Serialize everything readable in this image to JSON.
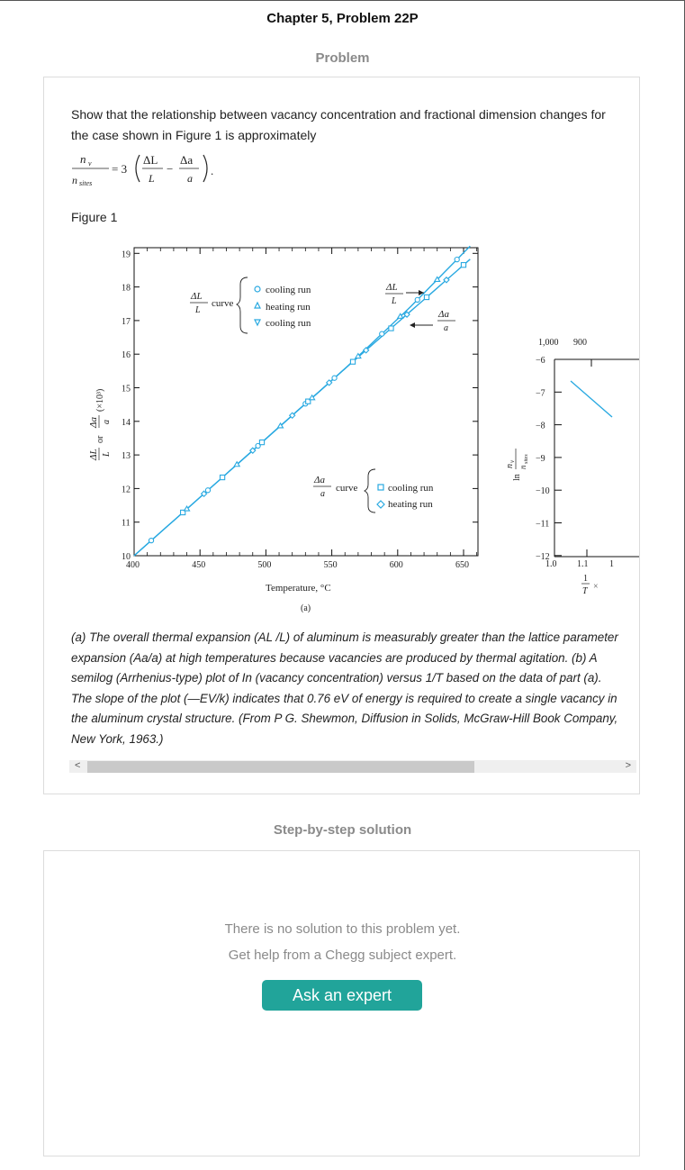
{
  "header": {
    "chapter_title": "Chapter 5, Problem 22P"
  },
  "problem": {
    "section_title": "Problem",
    "statement": "Show that the relationship between vacancy concentration and fractional dimension changes for the case shown in Figure 1 is approximately",
    "equation": {
      "lhs_num": "n",
      "lhs_num_sub": "v",
      "lhs_den": "n",
      "lhs_den_sub": "sites",
      "coef": "= 3",
      "t1_num": "ΔL",
      "t1_den": "L",
      "minus": "−",
      "t2_num": "Δa",
      "t2_den": "a",
      "end": "."
    },
    "figure_label": "Figure 1",
    "caption": "(a) The overall thermal expansion (AL /L) of aluminum is measurably greater than the lattice parameter expansion (Aa/a) at high temperatures because vacancies are produced by thermal agitation. (b) A semilog (Arrhenius-type) plot of In (vacancy concentration) versus 1/T based on the data of part (a). The slope of the plot (—EV/k) indicates that 0.76 eV of energy is required to create a single vacancy in the aluminum crystal structure. (From P G. Shewmon, Diffusion in Solids, McGraw-Hill Book Company, New York, 1963.)"
  },
  "figure": {
    "panel_a": {
      "y_ticks": [
        "19",
        "18",
        "17",
        "16",
        "15",
        "14",
        "13",
        "12",
        "11",
        "10"
      ],
      "x_ticks": [
        "400",
        "450",
        "500",
        "550",
        "600",
        "650"
      ],
      "ylabel_frac1_num": "ΔL",
      "ylabel_frac1_den": "L",
      "ylabel_or": "or",
      "ylabel_frac2_num": "Δa",
      "ylabel_frac2_den": "a",
      "ylabel_scale": "(×10³)",
      "xlabel": "Temperature, °C",
      "sublabel": "(a)",
      "legend1": {
        "frac_num": "ΔL",
        "frac_den": "L",
        "word": "curve",
        "items": [
          "cooling run",
          "heating run",
          "cooling run"
        ]
      },
      "legend2": {
        "frac_num": "Δa",
        "frac_den": "a",
        "word": "curve",
        "items": [
          "cooling run",
          "heating run"
        ]
      },
      "arrow1_num": "ΔL",
      "arrow1_den": "L",
      "arrow2_num": "Δa",
      "arrow2_den": "a"
    },
    "panel_b": {
      "y_ticks": [
        "−6",
        "−7",
        "−8",
        "−9",
        "−10",
        "−11",
        "−12"
      ],
      "top_ticks": [
        "1,000",
        "900"
      ],
      "x_ticks": [
        "1.0",
        "1.1",
        "1"
      ],
      "ylabel_ln": "ln",
      "ylabel_num": "n",
      "ylabel_num_sub": "v",
      "ylabel_den": "n",
      "ylabel_den_sub": "sites",
      "xlabel_num": "1",
      "xlabel_den": "T",
      "xlabel_tail": "×"
    },
    "line_color": "#29a9e1",
    "axis_color": "#111111"
  },
  "solution": {
    "section_title": "Step-by-step solution",
    "line1": "There is no solution to this problem yet.",
    "line2": "Get help from a Chegg subject expert.",
    "button": "Ask an expert"
  },
  "scrollbar": {
    "left_arrow": "<",
    "right_arrow": ">"
  }
}
